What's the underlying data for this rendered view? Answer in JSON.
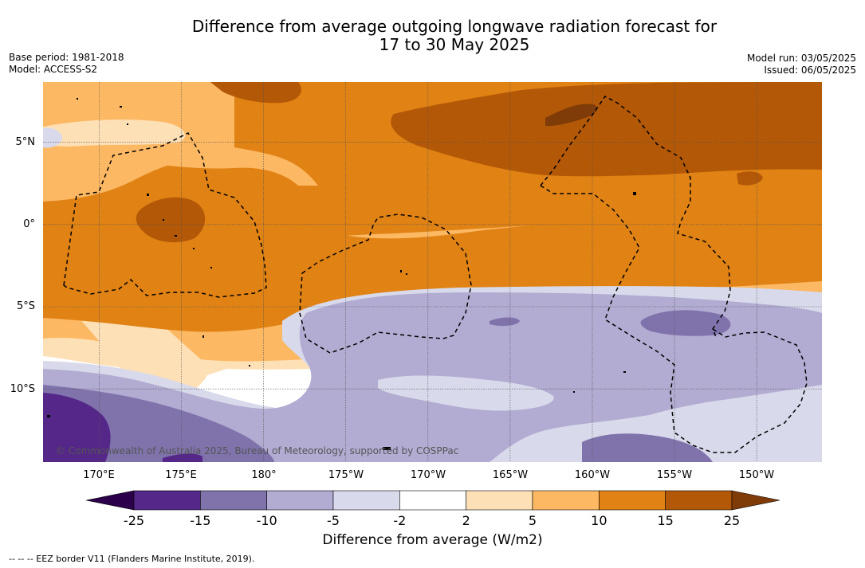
{
  "title": {
    "line1": "Difference from average outgoing longwave radiation forecast for",
    "line2": "17 to 30 May 2025"
  },
  "meta_left": {
    "base_period": "Base period: 1981-2018",
    "model": "Model: ACCESS-S2"
  },
  "meta_right": {
    "model_run": "Model run: 03/05/2025",
    "issued": "Issued: 06/05/2025"
  },
  "lat_labels": [
    "5°N",
    "0°",
    "5°S",
    "10°S"
  ],
  "lon_labels": [
    "170°E",
    "175°E",
    "180°",
    "175°W",
    "170°W",
    "165°W",
    "160°W",
    "155°W",
    "150°W"
  ],
  "copyright": "© Commonwealth of Australia 2025, Bureau of Meteorology, supported by COSPPac",
  "colorbar": {
    "ticks": [
      "-25",
      "-15",
      "-10",
      "-5",
      "-2",
      "2",
      "5",
      "10",
      "15",
      "25"
    ],
    "colors": [
      "#2d004b",
      "#542788",
      "#8073ac",
      "#b2abd2",
      "#d8daeb",
      "#ffffff",
      "#fee0b6",
      "#fdb863",
      "#e08214",
      "#b35806",
      "#7f3b08"
    ],
    "label": "Difference from average (W/m2)"
  },
  "footnote": "--  --  -- EEZ border V11 (Flanders Marine Institute, 2019)."
}
